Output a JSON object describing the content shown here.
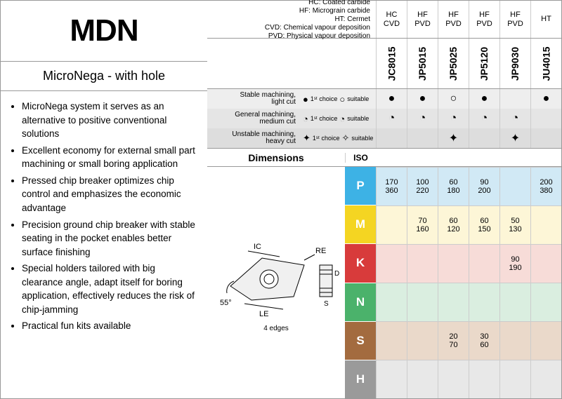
{
  "title": "MDN",
  "subtitle": "MicroNega - with hole",
  "bullets": [
    "MicroNega system it serves as an alternative to positive conventional solutions",
    "Excellent economy for external small part machining or small boring application",
    "Pressed chip breaker optimizes chip control and emphasizes the economic advantage",
    "Precision ground chip breaker with stable seating in the pocket enables better surface finishing",
    "Special holders tailored with big clearance angle, adapt itself for boring application, effectively reduces the risk of chip-jamming",
    "Practical fun kits available"
  ],
  "legend": [
    "HC: Coated carbide",
    "HF: Micrograin carbide",
    "HT: Cermet",
    "CVD: Chemical vapour deposition",
    "PVD: Physical vapour deposition"
  ],
  "col_heads": [
    {
      "l1": "HC",
      "l2": "CVD"
    },
    {
      "l1": "HF",
      "l2": "PVD"
    },
    {
      "l1": "HF",
      "l2": "PVD"
    },
    {
      "l1": "HF",
      "l2": "PVD"
    },
    {
      "l1": "HF",
      "l2": "PVD"
    },
    {
      "l1": "HT",
      "l2": ""
    }
  ],
  "grades": [
    "JC8015",
    "JP5015",
    "JP5025",
    "JP5120",
    "JP9030",
    "JU4015"
  ],
  "mach_rows": [
    {
      "label1": "Stable machining,",
      "label2": "light cut",
      "cells": [
        "●",
        "●",
        "○",
        "●",
        "",
        "●"
      ]
    },
    {
      "label1": "General machining,",
      "label2": "medium cut",
      "cells": [
        "◔",
        "◔",
        "◔",
        "◔",
        "◔",
        ""
      ]
    },
    {
      "label1": "Unstable machining,",
      "label2": "heavy cut",
      "cells": [
        "",
        "",
        "✦",
        "",
        "✦",
        ""
      ]
    }
  ],
  "mach_legend": {
    "first": "1ˢᵗ choice",
    "suit": "suitable"
  },
  "dim_label": "Dimensions",
  "iso_label": "ISO",
  "edges_label": "4 edges",
  "diagram_labels": {
    "ic": "IC",
    "re": "RE",
    "le": "LE",
    "d1": "D1",
    "s": "S",
    "ang": "55°"
  },
  "iso_rows": [
    {
      "k": "P",
      "color": "#3db2e5",
      "bg": "#d1e9f5"
    },
    {
      "k": "M",
      "color": "#f4d522",
      "bg": "#fdf6d7"
    },
    {
      "k": "K",
      "color": "#d83b3b",
      "bg": "#f7dcd8"
    },
    {
      "k": "N",
      "color": "#4bb26b",
      "bg": "#daeee0"
    },
    {
      "k": "S",
      "color": "#a36b3f",
      "bg": "#ead9ca"
    },
    {
      "k": "H",
      "color": "#9a9a9a",
      "bg": "#e8e8e8"
    }
  ],
  "data": [
    [
      [
        "170",
        "360"
      ],
      [
        "100",
        "220"
      ],
      [
        "60",
        "180"
      ],
      [
        "90",
        "200"
      ],
      [
        "",
        ""
      ],
      [
        "200",
        "380"
      ]
    ],
    [
      [
        "",
        ""
      ],
      [
        "70",
        "160"
      ],
      [
        "60",
        "120"
      ],
      [
        "60",
        "150"
      ],
      [
        "50",
        "130"
      ],
      [
        "",
        ""
      ]
    ],
    [
      [
        "",
        ""
      ],
      [
        "",
        ""
      ],
      [
        "",
        ""
      ],
      [
        "",
        ""
      ],
      [
        "90",
        "190"
      ],
      [
        "",
        ""
      ]
    ],
    [
      [
        "",
        ""
      ],
      [
        "",
        ""
      ],
      [
        "",
        ""
      ],
      [
        "",
        ""
      ],
      [
        "",
        ""
      ],
      [
        "",
        ""
      ]
    ],
    [
      [
        "",
        ""
      ],
      [
        "",
        ""
      ],
      [
        "20",
        "70"
      ],
      [
        "30",
        "60"
      ],
      [
        "",
        ""
      ],
      [
        "",
        ""
      ]
    ],
    [
      [
        "",
        ""
      ],
      [
        "",
        ""
      ],
      [
        "",
        ""
      ],
      [
        "",
        ""
      ],
      [
        "",
        ""
      ],
      [
        "",
        ""
      ]
    ]
  ]
}
